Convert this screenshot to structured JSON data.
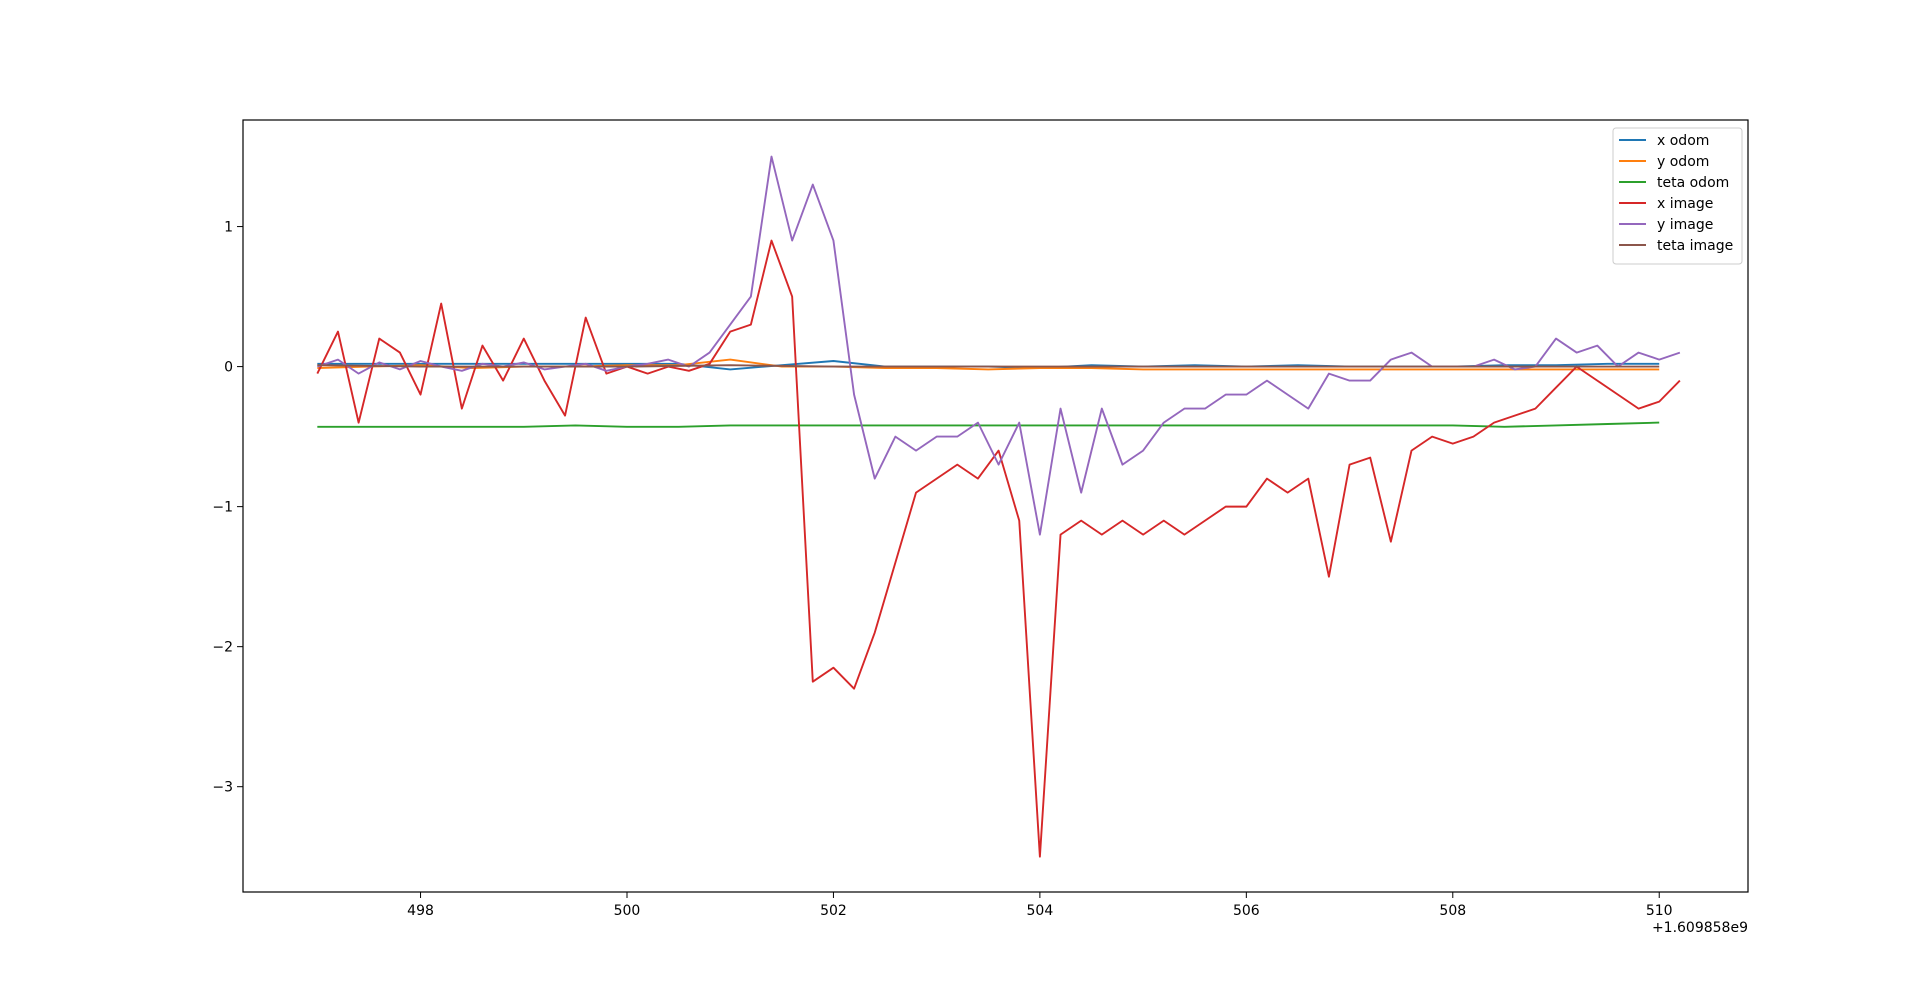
{
  "chart_data": {
    "type": "line",
    "x_offset_label": "+1.609858e9",
    "xlim": [
      496.28,
      510.86
    ],
    "xticks": [
      498,
      500,
      502,
      504,
      506,
      508,
      510
    ],
    "ylim": [
      -3.752,
      1.761
    ],
    "yticks": [
      {
        "value": -3,
        "label": "−3"
      },
      {
        "value": -2,
        "label": "−2"
      },
      {
        "value": -1,
        "label": "−1"
      },
      0,
      1
    ],
    "grid": false,
    "legend": "upper right",
    "series": [
      {
        "name": "x odom",
        "color": "#1f77b4",
        "x": [
          497.0,
          497.5,
          498.0,
          498.5,
          499.0,
          499.5,
          500.0,
          500.5,
          501.0,
          501.5,
          502.0,
          502.5,
          503.0,
          503.5,
          504.0,
          504.5,
          505.0,
          505.5,
          506.0,
          506.5,
          507.0,
          507.5,
          508.0,
          508.5,
          509.0,
          509.5,
          510.0
        ],
        "values": [
          0.02,
          0.02,
          0.02,
          0.02,
          0.02,
          0.02,
          0.02,
          0.02,
          -0.02,
          0.01,
          0.04,
          0.0,
          0.0,
          0.0,
          -0.01,
          0.01,
          0.0,
          0.01,
          0.0,
          0.01,
          0.0,
          0.0,
          0.0,
          0.01,
          0.01,
          0.02,
          0.02
        ]
      },
      {
        "name": "y odom",
        "color": "#ff7f0e",
        "x": [
          497.0,
          497.5,
          498.0,
          498.5,
          499.0,
          499.5,
          500.0,
          500.5,
          501.0,
          501.5,
          502.0,
          502.5,
          503.0,
          503.5,
          504.0,
          504.5,
          505.0,
          505.5,
          506.0,
          506.5,
          507.0,
          507.5,
          508.0,
          508.5,
          509.0,
          509.5,
          510.0
        ],
        "values": [
          -0.01,
          0.0,
          0.01,
          -0.01,
          0.0,
          0.0,
          0.01,
          0.01,
          0.05,
          0.0,
          0.0,
          -0.01,
          -0.01,
          -0.02,
          -0.01,
          -0.01,
          -0.02,
          -0.02,
          -0.02,
          -0.02,
          -0.02,
          -0.02,
          -0.02,
          -0.02,
          -0.02,
          -0.02,
          -0.02
        ]
      },
      {
        "name": "teta odom",
        "color": "#2ca02c",
        "x": [
          497.0,
          497.5,
          498.0,
          498.5,
          499.0,
          499.5,
          500.0,
          500.5,
          501.0,
          501.5,
          502.0,
          502.5,
          503.0,
          503.5,
          504.0,
          504.5,
          505.0,
          505.5,
          506.0,
          506.5,
          507.0,
          507.5,
          508.0,
          508.5,
          509.0,
          509.5,
          510.0
        ],
        "values": [
          -0.43,
          -0.43,
          -0.43,
          -0.43,
          -0.43,
          -0.42,
          -0.43,
          -0.43,
          -0.42,
          -0.42,
          -0.42,
          -0.42,
          -0.42,
          -0.42,
          -0.42,
          -0.42,
          -0.42,
          -0.42,
          -0.42,
          -0.42,
          -0.42,
          -0.42,
          -0.42,
          -0.43,
          -0.42,
          -0.41,
          -0.4
        ]
      },
      {
        "name": "x image",
        "color": "#d62728",
        "x": [
          497.0,
          497.2,
          497.4,
          497.6,
          497.8,
          498.0,
          498.2,
          498.4,
          498.6,
          498.8,
          499.0,
          499.2,
          499.4,
          499.6,
          499.8,
          500.0,
          500.2,
          500.4,
          500.6,
          500.8,
          501.0,
          501.2,
          501.4,
          501.6,
          501.8,
          502.0,
          502.2,
          502.4,
          502.6,
          502.8,
          503.0,
          503.2,
          503.4,
          503.6,
          503.8,
          504.0,
          504.2,
          504.4,
          504.6,
          504.8,
          505.0,
          505.2,
          505.4,
          505.6,
          505.8,
          506.0,
          506.2,
          506.4,
          506.6,
          506.8,
          507.0,
          507.2,
          507.4,
          507.6,
          507.8,
          508.0,
          508.2,
          508.4,
          508.6,
          508.8,
          509.0,
          509.2,
          509.4,
          509.6,
          509.8,
          510.0,
          510.2
        ],
        "values": [
          -0.05,
          0.25,
          -0.4,
          0.2,
          0.1,
          -0.2,
          0.45,
          -0.3,
          0.15,
          -0.1,
          0.2,
          -0.1,
          -0.35,
          0.35,
          -0.05,
          0.0,
          -0.05,
          0.0,
          -0.03,
          0.02,
          0.25,
          0.3,
          0.9,
          0.5,
          -2.25,
          -2.15,
          -2.3,
          -1.9,
          -1.4,
          -0.9,
          -0.8,
          -0.7,
          -0.8,
          -0.6,
          -1.1,
          -3.5,
          -1.2,
          -1.1,
          -1.2,
          -1.1,
          -1.2,
          -1.1,
          -1.2,
          -1.1,
          -1.0,
          -1.0,
          -0.8,
          -0.9,
          -0.8,
          -1.5,
          -0.7,
          -0.65,
          -1.25,
          -0.6,
          -0.5,
          -0.55,
          -0.5,
          -0.4,
          -0.35,
          -0.3,
          -0.15,
          0.0,
          -0.1,
          -0.2,
          -0.3,
          -0.25,
          -0.1
        ]
      },
      {
        "name": "y image",
        "color": "#9467bd",
        "x": [
          497.0,
          497.2,
          497.4,
          497.6,
          497.8,
          498.0,
          498.2,
          498.4,
          498.6,
          498.8,
          499.0,
          499.2,
          499.4,
          499.6,
          499.8,
          500.0,
          500.2,
          500.4,
          500.6,
          500.8,
          501.0,
          501.2,
          501.4,
          501.6,
          501.8,
          502.0,
          502.2,
          502.4,
          502.6,
          502.8,
          503.0,
          503.2,
          503.4,
          503.6,
          503.8,
          504.0,
          504.2,
          504.4,
          504.6,
          504.8,
          505.0,
          505.2,
          505.4,
          505.6,
          505.8,
          506.0,
          506.2,
          506.4,
          506.6,
          506.8,
          507.0,
          507.2,
          507.4,
          507.6,
          507.8,
          508.0,
          508.2,
          508.4,
          508.6,
          508.8,
          509.0,
          509.2,
          509.4,
          509.6,
          509.8,
          510.0,
          510.2
        ],
        "values": [
          0.0,
          0.05,
          -0.05,
          0.03,
          -0.02,
          0.04,
          0.0,
          -0.03,
          0.02,
          0.0,
          0.03,
          -0.02,
          0.0,
          0.02,
          -0.03,
          0.0,
          0.02,
          0.05,
          0.0,
          0.1,
          0.3,
          0.5,
          1.5,
          0.9,
          1.3,
          0.9,
          -0.2,
          -0.8,
          -0.5,
          -0.6,
          -0.5,
          -0.5,
          -0.4,
          -0.7,
          -0.4,
          -1.2,
          -0.3,
          -0.9,
          -0.3,
          -0.7,
          -0.6,
          -0.4,
          -0.3,
          -0.3,
          -0.2,
          -0.2,
          -0.1,
          -0.2,
          -0.3,
          -0.05,
          -0.1,
          -0.1,
          0.05,
          0.1,
          0.0,
          0.0,
          0.0,
          0.05,
          -0.02,
          0.0,
          0.2,
          0.1,
          0.15,
          0.0,
          0.1,
          0.05,
          0.1
        ]
      },
      {
        "name": "teta image",
        "color": "#8c564b",
        "x": [
          497,
          498,
          499,
          500,
          501,
          502,
          503,
          504,
          505,
          506,
          507,
          508,
          509,
          510
        ],
        "values": [
          0.01,
          0.0,
          0.0,
          0.0,
          0.01,
          0.0,
          0.0,
          0.0,
          0.0,
          0.0,
          0.0,
          0.0,
          0.0,
          0.0
        ]
      }
    ]
  }
}
